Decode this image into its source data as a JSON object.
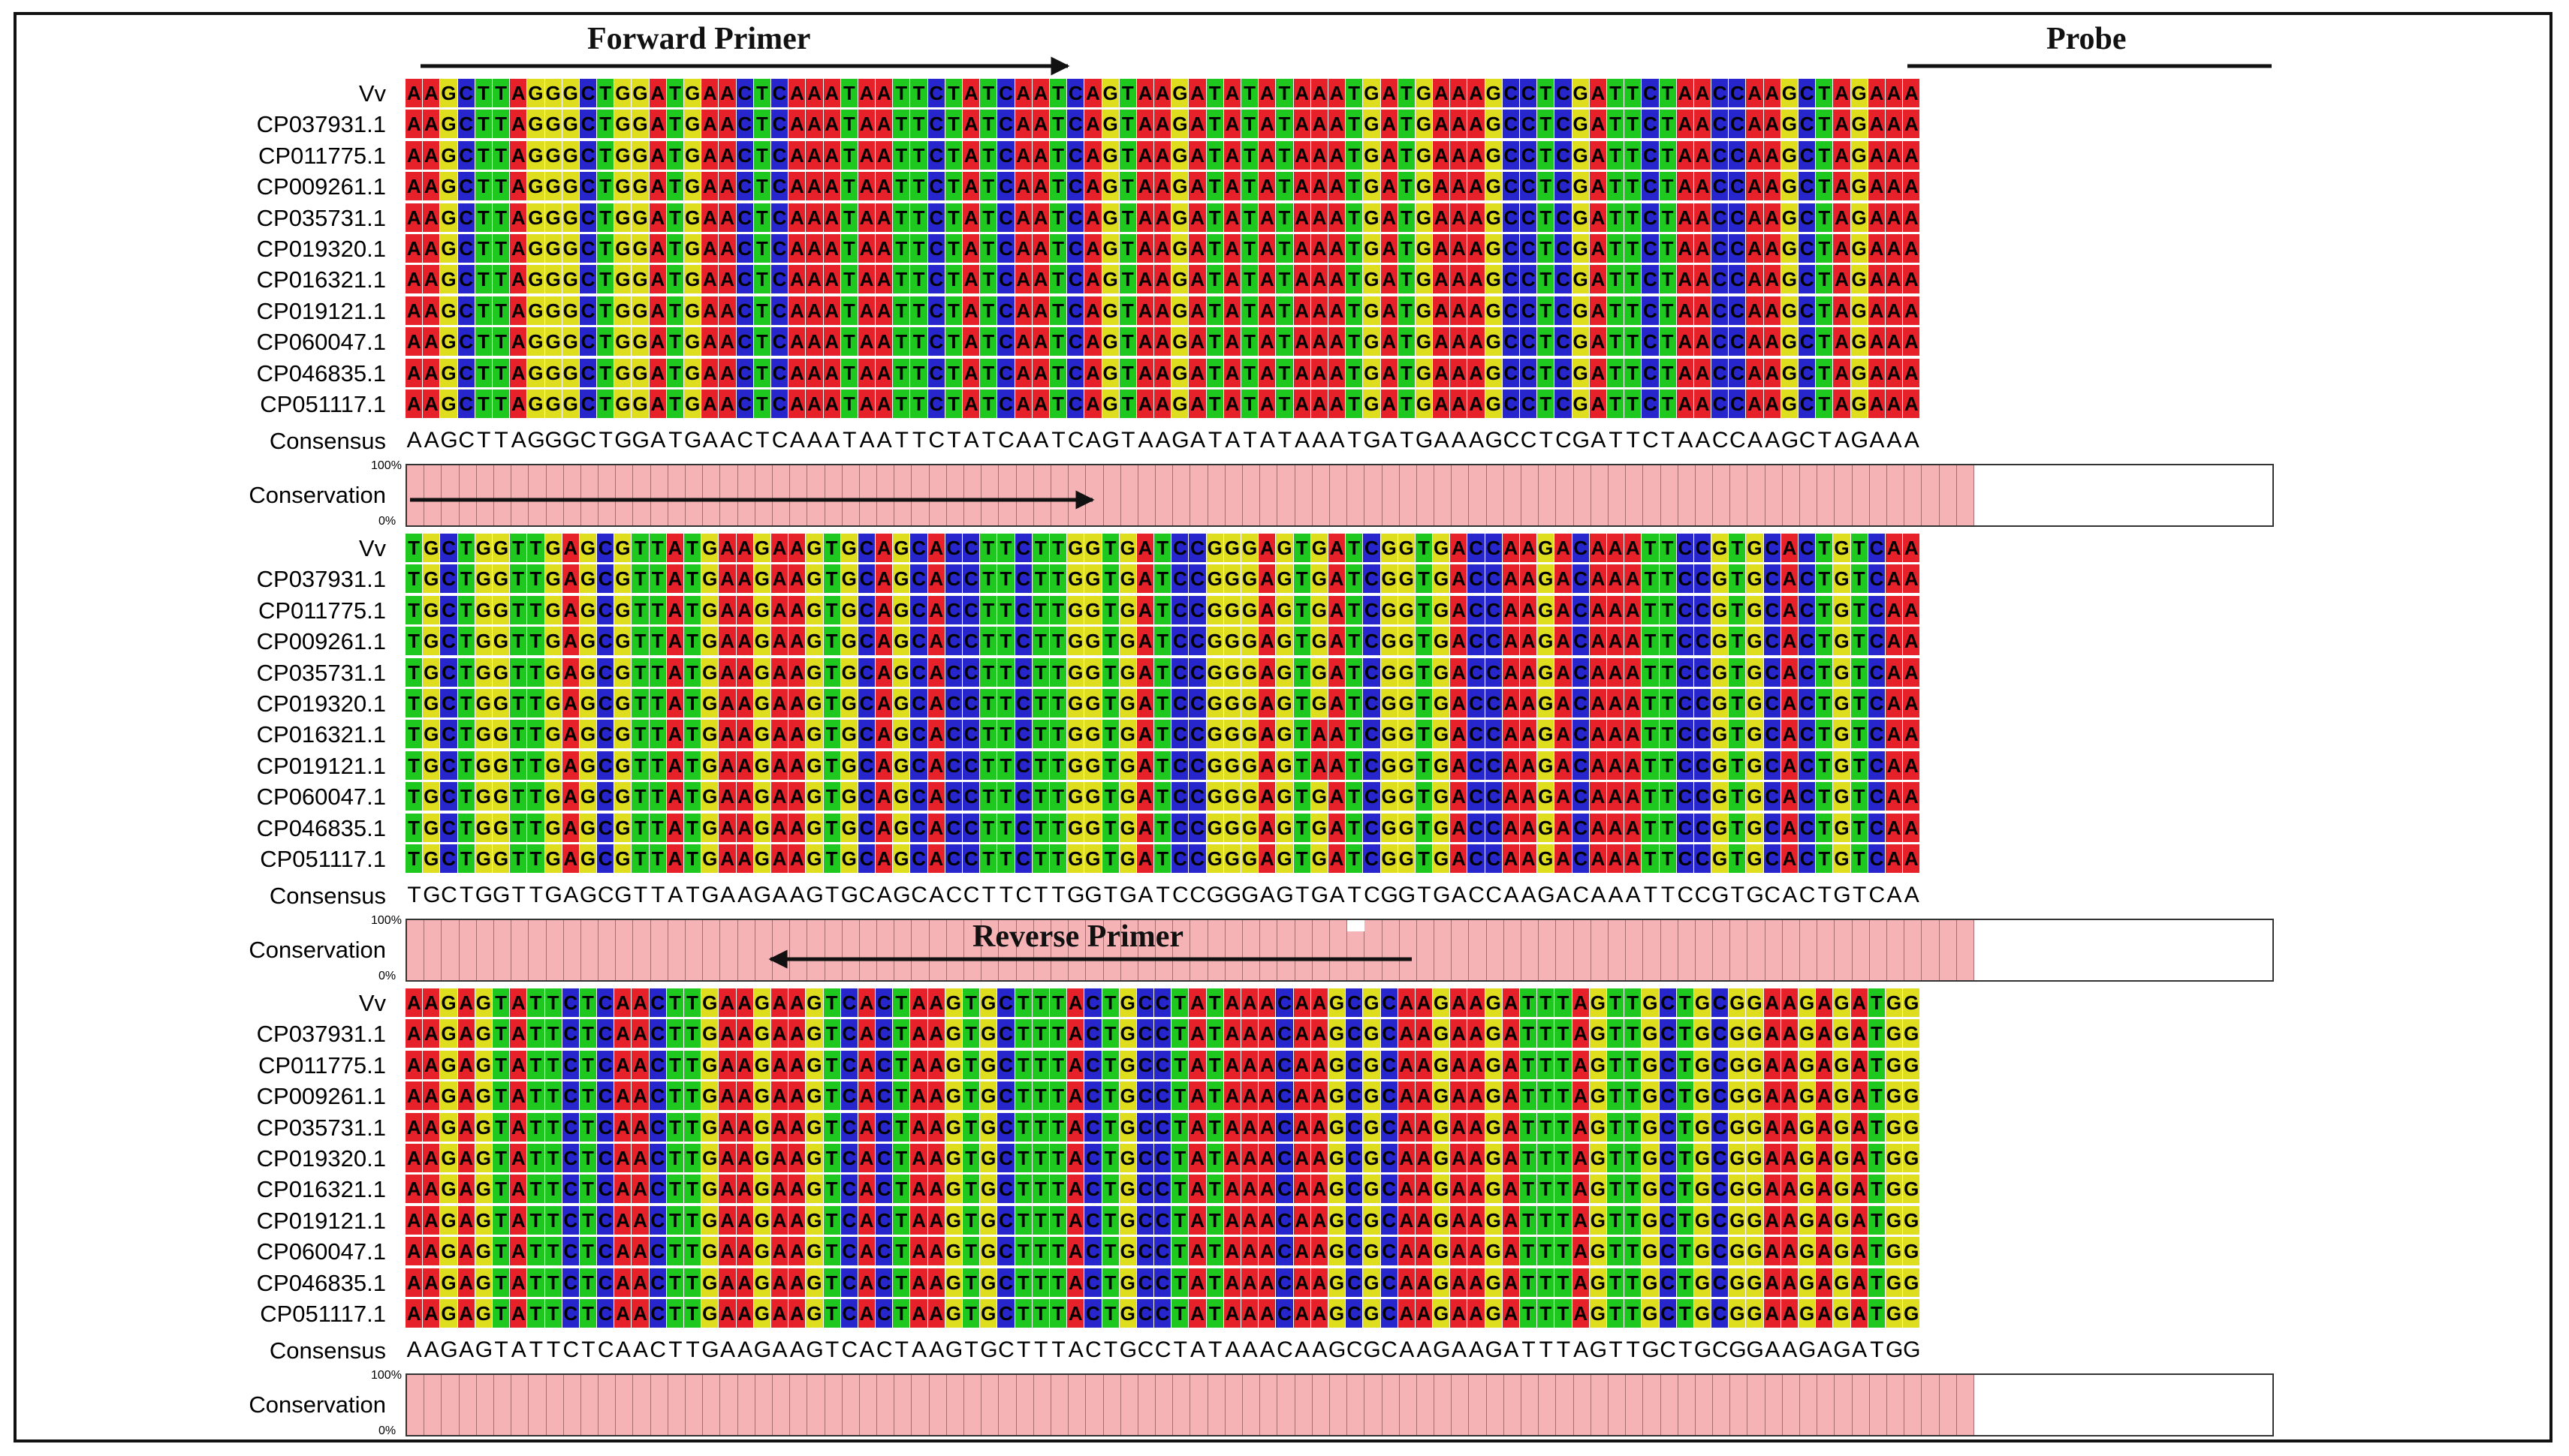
{
  "annotations": {
    "forward_primer": "Forward Primer",
    "probe": "Probe",
    "reverse_primer": "Reverse Primer"
  },
  "labels": {
    "consensus": "Consensus",
    "conservation": "Conservation",
    "pct_max": "100%",
    "pct_min": "0%"
  },
  "sequence_names": [
    "Vv",
    "CP037931.1",
    "CP011775.1",
    "CP009261.1",
    "CP035731.1",
    "CP019320.1",
    "CP016321.1",
    "CP019121.1",
    "CP060047.1",
    "CP046835.1",
    "CP051117.1"
  ],
  "colors": {
    "A": "#e6212a",
    "C": "#2626cc",
    "G": "#dede1e",
    "T": "#1ec81e",
    "conservation_bar": "#f5b3b5"
  },
  "blocks": [
    {
      "consensus": "AAGCTTAGGGCTGGATGAACTCAAATAATTCTATCAATCAGTAAGATATATAAATGATGAAAGCCTCGATTCTAACCAAGCTAGAAA",
      "sequences": [
        "AAGCTTAGGGCTGGATGAACTCAAATAATTCTATCAATCAGTAAGATATATAAATGATGAAAGCCTCGATTCTAACCAAGCTAGAAA",
        "AAGCTTAGGGCTGGATGAACTCAAATAATTCTATCAATCAGTAAGATATATAAATGATGAAAGCCTCGATTCTAACCAAGCTAGAAA",
        "AAGCTTAGGGCTGGATGAACTCAAATAATTCTATCAATCAGTAAGATATATAAATGATGAAAGCCTCGATTCTAACCAAGCTAGAAA",
        "AAGCTTAGGGCTGGATGAACTCAAATAATTCTATCAATCAGTAAGATATATAAATGATGAAAGCCTCGATTCTAACCAAGCTAGAAA",
        "AAGCTTAGGGCTGGATGAACTCAAATAATTCTATCAATCAGTAAGATATATAAATGATGAAAGCCTCGATTCTAACCAAGCTAGAAA",
        "AAGCTTAGGGCTGGATGAACTCAAATAATTCTATCAATCAGTAAGATATATAAATGATGAAAGCCTCGATTCTAACCAAGCTAGAAA",
        "AAGCTTAGGGCTGGATGAACTCAAATAATTCTATCAATCAGTAAGATATATAAATGATGAAAGCCTCGATTCTAACCAAGCTAGAAA",
        "AAGCTTAGGGCTGGATGAACTCAAATAATTCTATCAATCAGTAAGATATATAAATGATGAAAGCCTCGATTCTAACCAAGCTAGAAA",
        "AAGCTTAGGGCTGGATGAACTCAAATAATTCTATCAATCAGTAAGATATATAAATGATGAAAGCCTCGATTCTAACCAAGCTAGAAA",
        "AAGCTTAGGGCTGGATGAACTCAAATAATTCTATCAATCAGTAAGATATATAAATGATGAAAGCCTCGATTCTAACCAAGCTAGAAA",
        "AAGCTTAGGGCTGGATGAACTCAAATAATTCTATCAATCAGTAAGATATATAAATGATGAAAGCCTCGATTCTAACCAAGCTAGAAA"
      ],
      "conservation": [
        100,
        100,
        100,
        100,
        100,
        100,
        100,
        100,
        100,
        100,
        100,
        100,
        100,
        100,
        100,
        100,
        100,
        100,
        100,
        100,
        100,
        100,
        100,
        100,
        100,
        100,
        100,
        100,
        100,
        100,
        100,
        100,
        100,
        100,
        100,
        100,
        100,
        100,
        100,
        100,
        100,
        100,
        100,
        100,
        100,
        100,
        100,
        100,
        100,
        100,
        100,
        100,
        100,
        100,
        100,
        100,
        100,
        100,
        100,
        100,
        100,
        100,
        100,
        100,
        100,
        100,
        100,
        100,
        100,
        100,
        100,
        100,
        100,
        100,
        100,
        100,
        100,
        100,
        100,
        100,
        100,
        100,
        100,
        100,
        100,
        100,
        100,
        100,
        100,
        100
      ]
    },
    {
      "consensus": "TGCTGGTTGAGCGTTATGAAGAAGTGCAGCACCTTCTTGGTGATCCGGGAGTGATCGGTGACCAAGACAAATTCCGTGCACTGTCAA",
      "sequences": [
        "TGCTGGTTGAGCGTTATGAAGAAGTGCAGCACCTTCTTGGTGATCCGGGAGTGATCGGTGACCAAGACAAATTCCGTGCACTGTCAA",
        "TGCTGGTTGAGCGTTATGAAGAAGTGCAGCACCTTCTTGGTGATCCGGGAGTGATCGGTGACCAAGACAAATTCCGTGCACTGTCAA",
        "TGCTGGTTGAGCGTTATGAAGAAGTGCAGCACCTTCTTGGTGATCCGGGAGTGATCGGTGACCAAGACAAATTCCGTGCACTGTCAA",
        "TGCTGGTTGAGCGTTATGAAGAAGTGCAGCACCTTCTTGGTGATCCGGGAGTGATCGGTGACCAAGACAAATTCCGTGCACTGTCAA",
        "TGCTGGTTGAGCGTTATGAAGAAGTGCAGCACCTTCTTGGTGATCCGGGAGTGATCGGTGACCAAGACAAATTCCGTGCACTGTCAA",
        "TGCTGGTTGAGCGTTATGAAGAAGTGCAGCACCTTCTTGGTGATCCGGGAGTGATCGGTGACCAAGACAAATTCCGTGCACTGTCAA",
        "TGCTGGTTGAGCGTTATGAAGAAGTGCAGCACCTTCTTGGTGATCCGGGAGTAATCGGTGACCAAGACAAATTCCGTGCACTGTCAA",
        "TGCTGGTTGAGCGTTATGAAGAAGTGCAGCACCTTCTTGGTGATCCGGGAGTAATCGGTGACCAAGACAAATTCCGTGCACTGTCAA",
        "TGCTGGTTGAGCGTTATGAAGAAGTGCAGCACCTTCTTGGTGATCCGGGAGTGATCGGTGACCAAGACAAATTCCGTGCACTGTCAA",
        "TGCTGGTTGAGCGTTATGAAGAAGTGCAGCACCTTCTTGGTGATCCGGGAGTGATCGGTGACCAAGACAAATTCCGTGCACTGTCAA",
        "TGCTGGTTGAGCGTTATGAAGAAGTGCAGCACCTTCTTGGTGATCCGGGAGTGATCGGTGACCAAGACAAATTCCGTGCACTGTCAA"
      ],
      "conservation": [
        100,
        100,
        100,
        100,
        100,
        100,
        100,
        100,
        100,
        100,
        100,
        100,
        100,
        100,
        100,
        100,
        100,
        100,
        100,
        100,
        100,
        100,
        100,
        100,
        100,
        100,
        100,
        100,
        100,
        100,
        100,
        100,
        100,
        100,
        100,
        100,
        100,
        100,
        100,
        100,
        100,
        100,
        100,
        100,
        100,
        100,
        100,
        100,
        100,
        100,
        100,
        100,
        100,
        100,
        82,
        100,
        100,
        100,
        100,
        100,
        100,
        100,
        100,
        100,
        100,
        100,
        100,
        100,
        100,
        100,
        100,
        100,
        100,
        100,
        100,
        100,
        100,
        100,
        100,
        100,
        100,
        100,
        100,
        100,
        100,
        100,
        100,
        100,
        100,
        100
      ]
    },
    {
      "consensus": "AAGAGTATTCTCAACTTGAAGAAGTCACTAAGTGCTTTACTGCCTATAAACAAGCGCAAGAAGATTTAGTTGCTGCGGAAGAGATGG",
      "sequences": [
        "AAGAGTATTCTCAACTTGAAGAAGTCACTAAGTGCTTTACTGCCTATAAACAAGCGCAAGAAGATTTAGTTGCTGCGGAAGAGATGG",
        "AAGAGTATTCTCAACTTGAAGAAGTCACTAAGTGCTTTACTGCCTATAAACAAGCGCAAGAAGATTTAGTTGCTGCGGAAGAGATGG",
        "AAGAGTATTCTCAACTTGAAGAAGTCACTAAGTGCTTTACTGCCTATAAACAAGCGCAAGAAGATTTAGTTGCTGCGGAAGAGATGG",
        "AAGAGTATTCTCAACTTGAAGAAGTCACTAAGTGCTTTACTGCCTATAAACAAGCGCAAGAAGATTTAGTTGCTGCGGAAGAGATGG",
        "AAGAGTATTCTCAACTTGAAGAAGTCACTAAGTGCTTTACTGCCTATAAACAAGCGCAAGAAGATTTAGTTGCTGCGGAAGAGATGG",
        "AAGAGTATTCTCAACTTGAAGAAGTCACTAAGTGCTTTACTGCCTATAAACAAGCGCAAGAAGATTTAGTTGCTGCGGAAGAGATGG",
        "AAGAGTATTCTCAACTTGAAGAAGTCACTAAGTGCTTTACTGCCTATAAACAAGCGCAAGAAGATTTAGTTGCTGCGGAAGAGATGG",
        "AAGAGTATTCTCAACTTGAAGAAGTCACTAAGTGCTTTACTGCCTATAAACAAGCGCAAGAAGATTTAGTTGCTGCGGAAGAGATGG",
        "AAGAGTATTCTCAACTTGAAGAAGTCACTAAGTGCTTTACTGCCTATAAACAAGCGCAAGAAGATTTAGTTGCTGCGGAAGAGATGG",
        "AAGAGTATTCTCAACTTGAAGAAGTCACTAAGTGCTTTACTGCCTATAAACAAGCGCAAGAAGATTTAGTTGCTGCGGAAGAGATGG",
        "AAGAGTATTCTCAACTTGAAGAAGTCACTAAGTGCTTTACTGCCTATAAACAAGCGCAAGAAGATTTAGTTGCTGCGGAAGAGATGG"
      ],
      "conservation": [
        100,
        100,
        100,
        100,
        100,
        100,
        100,
        100,
        100,
        100,
        100,
        100,
        100,
        100,
        100,
        100,
        100,
        100,
        100,
        100,
        100,
        100,
        100,
        100,
        100,
        100,
        100,
        100,
        100,
        100,
        100,
        100,
        100,
        100,
        100,
        100,
        100,
        100,
        100,
        100,
        100,
        100,
        100,
        100,
        100,
        100,
        100,
        100,
        100,
        100,
        100,
        100,
        100,
        100,
        100,
        100,
        100,
        100,
        100,
        100,
        100,
        100,
        100,
        100,
        100,
        100,
        100,
        100,
        100,
        100,
        100,
        100,
        100,
        100,
        100,
        100,
        100,
        100,
        100,
        100,
        100,
        100,
        100,
        100,
        100,
        100,
        100,
        100,
        100,
        100
      ]
    }
  ]
}
